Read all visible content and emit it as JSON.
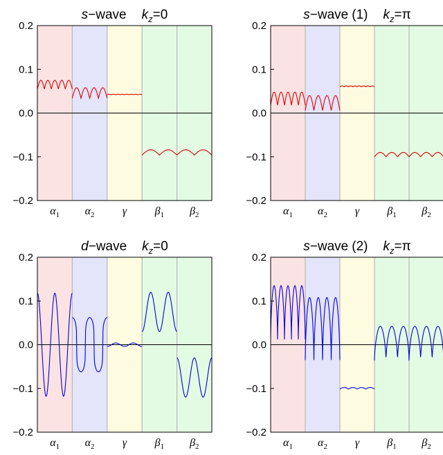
{
  "figure": {
    "colors": {
      "alpha1_band": "#fbe3e3",
      "alpha2_band": "#e4e4fb",
      "gamma_band": "#fdfce0",
      "beta_band": "#e3fbe2",
      "band_separator": "#b8b8b8",
      "zero_line": "#000000",
      "s_wave_curve": "#e00000",
      "d_wave_curve": "#0000e0"
    }
  },
  "chart_data": [
    {
      "type": "line",
      "panel": "top-left",
      "title": {
        "wave_italic": "s",
        "wave_rest": "−wave",
        "variant": "",
        "kz_value": "0"
      },
      "ylim": [
        -0.2,
        0.2
      ],
      "yticks": [
        "0.2",
        "0.1",
        "0.0",
        "−0.1",
        "−0.2"
      ],
      "ytick_values": [
        0.2,
        0.1,
        0.0,
        -0.1,
        -0.2
      ],
      "x_categories": [
        {
          "sym": "α",
          "sub": "1"
        },
        {
          "sym": "α",
          "sub": "2"
        },
        {
          "sym": "γ",
          "sub": ""
        },
        {
          "sym": "β",
          "sub": "1"
        },
        {
          "sym": "β",
          "sub": "2"
        }
      ],
      "grid": false,
      "series": [
        {
          "color": "#e00000",
          "segments": [
            {
              "band": 0,
              "shape": "cusp-up",
              "base": 0.055,
              "peak": 0.075,
              "n": 5
            },
            {
              "band": 1,
              "shape": "cusp-up",
              "base": 0.034,
              "peak": 0.058,
              "n": 4
            },
            {
              "band": 2,
              "shape": "flat-ripple",
              "base": 0.042,
              "peak": 0.043,
              "n": 8
            },
            {
              "band": 3,
              "shape": "cusp-up",
              "base": -0.096,
              "peak": -0.084,
              "n": 2
            },
            {
              "band": 4,
              "shape": "cusp-up",
              "base": -0.096,
              "peak": -0.084,
              "n": 2
            }
          ]
        }
      ]
    },
    {
      "type": "line",
      "panel": "top-right",
      "title": {
        "wave_italic": "s",
        "wave_rest": "−wave",
        "variant": "(1)",
        "kz_value": "π"
      },
      "ylim": [
        -0.2,
        0.2
      ],
      "yticks": [
        "0.2",
        "0.1",
        "0.0",
        "−0.1",
        "−0.2"
      ],
      "ytick_values": [
        0.2,
        0.1,
        0.0,
        -0.1,
        -0.2
      ],
      "x_categories": [
        {
          "sym": "α",
          "sub": "1"
        },
        {
          "sym": "α",
          "sub": "2"
        },
        {
          "sym": "γ",
          "sub": ""
        },
        {
          "sym": "β",
          "sub": "1"
        },
        {
          "sym": "β",
          "sub": "2"
        }
      ],
      "grid": false,
      "series": [
        {
          "color": "#e00000",
          "segments": [
            {
              "band": 0,
              "shape": "cusp-up",
              "base": 0.018,
              "peak": 0.048,
              "n": 5
            },
            {
              "band": 1,
              "shape": "cusp-up",
              "base": 0.006,
              "peak": 0.04,
              "n": 4
            },
            {
              "band": 2,
              "shape": "flat-ripple",
              "base": 0.06,
              "peak": 0.062,
              "n": 8
            },
            {
              "band": 3,
              "shape": "cusp-up",
              "base": -0.1,
              "peak": -0.09,
              "n": 3
            },
            {
              "band": 4,
              "shape": "cusp-up",
              "base": -0.1,
              "peak": -0.09,
              "n": 3
            }
          ]
        }
      ]
    },
    {
      "type": "line",
      "panel": "bottom-left",
      "title": {
        "wave_italic": "d",
        "wave_rest": "−wave",
        "variant": "",
        "kz_value": "0"
      },
      "ylim": [
        -0.2,
        0.2
      ],
      "yticks": [
        "0.2",
        "0.1",
        "0.0",
        "−0.1",
        "−0.2"
      ],
      "ytick_values": [
        0.2,
        0.1,
        0.0,
        -0.1,
        -0.2
      ],
      "x_categories": [
        {
          "sym": "α",
          "sub": "1"
        },
        {
          "sym": "α",
          "sub": "2"
        },
        {
          "sym": "γ",
          "sub": ""
        },
        {
          "sym": "β",
          "sub": "1"
        },
        {
          "sym": "β",
          "sub": "2"
        }
      ],
      "grid": false,
      "series": [
        {
          "color": "#0000e0",
          "segments": [
            {
              "band": 0,
              "shape": "cos",
              "amp": 0.118,
              "offset": 0.0,
              "cycles": 2,
              "phase": 0
            },
            {
              "band": 1,
              "shape": "flat-cos",
              "amp": 0.062,
              "offset": 0.0,
              "cycles": 2,
              "phase": 0
            },
            {
              "band": 2,
              "shape": "cos",
              "amp": 0.004,
              "offset": 0.0,
              "cycles": 2,
              "phase": 3.14159
            },
            {
              "band": 3,
              "shape": "cos",
              "amp": 0.045,
              "offset": 0.075,
              "cycles": 2,
              "phase": 3.14159
            },
            {
              "band": 4,
              "shape": "cos",
              "amp": 0.045,
              "offset": -0.075,
              "cycles": 2,
              "phase": 0
            }
          ]
        }
      ]
    },
    {
      "type": "line",
      "panel": "bottom-right",
      "title": {
        "wave_italic": "s",
        "wave_rest": "−wave",
        "variant": "(2)",
        "kz_value": "π"
      },
      "ylim": [
        -0.2,
        0.2
      ],
      "yticks": [
        "0.2",
        "0.1",
        "0.0",
        "−0.1",
        "−0.2"
      ],
      "ytick_values": [
        0.2,
        0.1,
        0.0,
        -0.1,
        -0.2
      ],
      "x_categories": [
        {
          "sym": "α",
          "sub": "1"
        },
        {
          "sym": "α",
          "sub": "2"
        },
        {
          "sym": "γ",
          "sub": ""
        },
        {
          "sym": "β",
          "sub": "1"
        },
        {
          "sym": "β",
          "sub": "2"
        }
      ],
      "grid": false,
      "series": [
        {
          "color": "#0000e0",
          "segments": [
            {
              "band": 0,
              "shape": "cusp-down",
              "base": 0.135,
              "trough": 0.012,
              "n": 5
            },
            {
              "band": 1,
              "shape": "cusp-down",
              "base": 0.108,
              "trough": -0.035,
              "n": 4
            },
            {
              "band": 2,
              "shape": "flat-ripple",
              "base": -0.101,
              "peak": -0.098,
              "n": 4
            },
            {
              "band": 3,
              "shape": "cusp-down",
              "base": 0.042,
              "trough": -0.036,
              "n": 3
            },
            {
              "band": 4,
              "shape": "cusp-down",
              "base": 0.042,
              "trough": -0.036,
              "n": 3
            }
          ]
        }
      ]
    }
  ]
}
